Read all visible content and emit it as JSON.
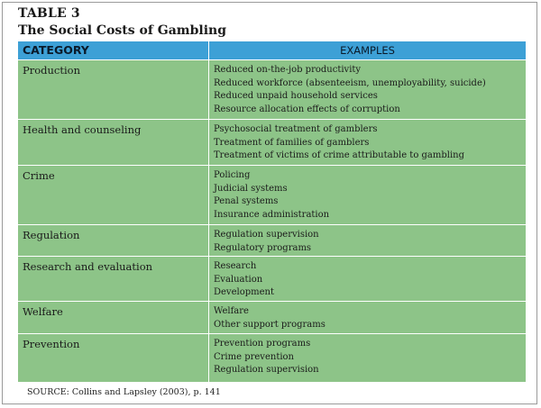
{
  "table": {
    "number": "TABLE 3",
    "title": "The Social Costs of Gambling",
    "header_category": "CATEGORY",
    "header_examples": "EXAMPLES",
    "rows": [
      {
        "category": "Production",
        "examples": [
          "Reduced on-the-job productivity",
          "Reduced workforce (absenteeism, unemployability, suicide)",
          "Reduced unpaid household services",
          "Resource allocation effects of corruption"
        ]
      },
      {
        "category": "Health and counseling",
        "examples": [
          "Psychosocial treatment of gamblers",
          "Treatment of families of gamblers",
          "Treatment of victims of crime attributable to gambling"
        ]
      },
      {
        "category": "Crime",
        "examples": [
          "Policing",
          "Judicial systems",
          "Penal systems",
          "Insurance administration"
        ]
      },
      {
        "category": "Regulation",
        "examples": [
          "Regulation supervision",
          "Regulatory programs"
        ]
      },
      {
        "category": "Research and evaluation",
        "examples": [
          "Research",
          "Evaluation",
          "Development"
        ]
      },
      {
        "category": "Welfare",
        "examples": [
          "Welfare",
          "Other support programs"
        ]
      },
      {
        "category": "Prevention",
        "examples": [
          "Prevention programs",
          "Crime prevention",
          "Regulation supervision"
        ]
      }
    ],
    "source": "SOURCE: Collins and Lapsley (2003), p. 141"
  },
  "colors": {
    "header_blue": "#3da0d6",
    "cell_green": "#8dc488"
  }
}
